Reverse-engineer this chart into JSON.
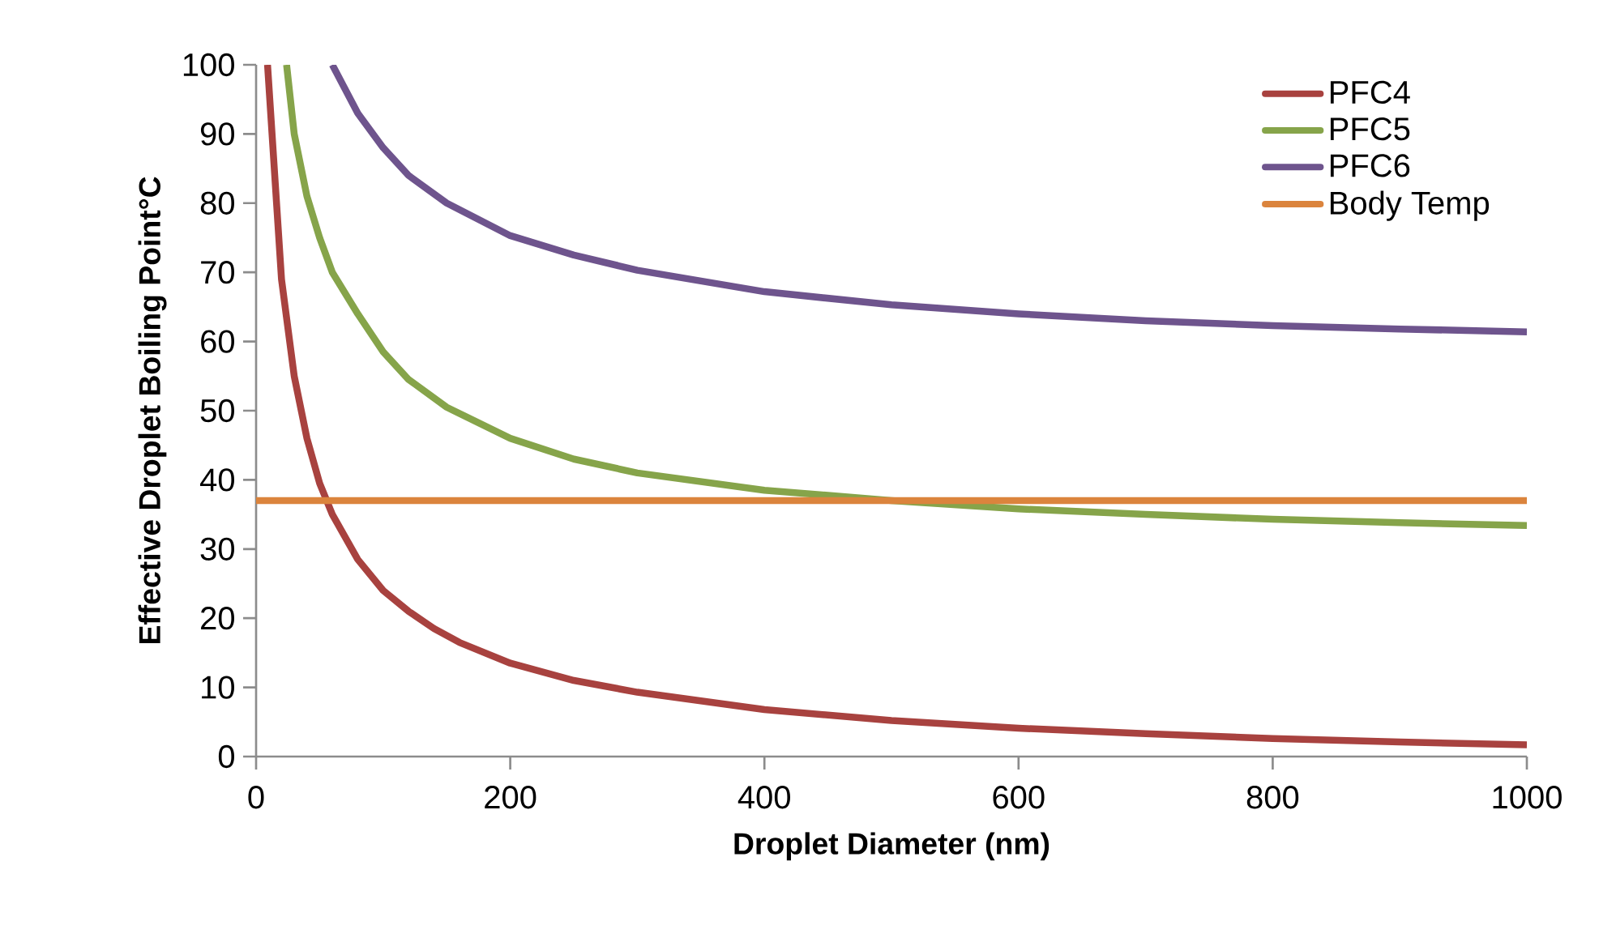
{
  "chart_data": {
    "type": "line",
    "xlabel": "Droplet Diameter (nm)",
    "ylabel": "Effective Droplet Boiling Point°C",
    "xlim": [
      0,
      1000
    ],
    "xticks": [
      0,
      200,
      400,
      600,
      800,
      1000
    ],
    "ylim": [
      0,
      100
    ],
    "yticks": [
      0,
      10,
      20,
      30,
      40,
      50,
      60,
      70,
      80,
      90,
      100
    ],
    "grid": false,
    "legend": "top right",
    "marker": "none",
    "line_style": "solid",
    "series": [
      {
        "name": "PFC4",
        "color": "#a8423f",
        "x": [
          9,
          20,
          30,
          40,
          50,
          60,
          80,
          100,
          120,
          140,
          160,
          200,
          250,
          300,
          400,
          500,
          600,
          700,
          800,
          900,
          1000
        ],
        "values": [
          100,
          69,
          55,
          46,
          39.5,
          35,
          28.5,
          24,
          21,
          18.5,
          16.5,
          13.5,
          11,
          9.3,
          6.8,
          5.2,
          4.1,
          3.3,
          2.6,
          2.1,
          1.7
        ]
      },
      {
        "name": "PFC5",
        "color": "#86a44a",
        "x": [
          24,
          30,
          40,
          50,
          60,
          80,
          100,
          120,
          150,
          200,
          250,
          300,
          400,
          500,
          600,
          700,
          800,
          900,
          1000
        ],
        "values": [
          100,
          90,
          81,
          75,
          70,
          64,
          58.5,
          54.5,
          50.5,
          46,
          43,
          41,
          38.5,
          37,
          35.8,
          35,
          34.3,
          33.8,
          33.4
        ]
      },
      {
        "name": "PFC6",
        "color": "#6e548d",
        "x": [
          60,
          80,
          100,
          120,
          150,
          200,
          250,
          300,
          400,
          500,
          600,
          700,
          800,
          900,
          1000
        ],
        "values": [
          100,
          93,
          88,
          84,
          80,
          75.3,
          72.5,
          70.3,
          67.2,
          65.3,
          64,
          63,
          62.3,
          61.8,
          61.4
        ]
      },
      {
        "name": "Body Temp",
        "color": "#db843d",
        "x": [
          0,
          1000
        ],
        "values": [
          37,
          37
        ]
      }
    ]
  }
}
